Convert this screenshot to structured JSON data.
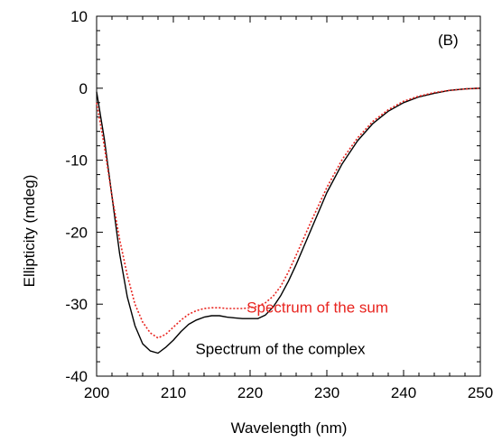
{
  "chart_data": {
    "type": "line",
    "panel_label": "(B)",
    "xlabel": "Wavelength (nm)",
    "ylabel": "Ellipticity (mdeg)",
    "xlim": [
      200,
      250
    ],
    "ylim": [
      -40,
      10
    ],
    "xticks": [
      "200",
      "210",
      "220",
      "230",
      "240",
      "250"
    ],
    "yticks": [
      "10",
      "0",
      "-10",
      "-20",
      "-30",
      "-40"
    ],
    "grid": false,
    "series": [
      {
        "name": "Spectrum of the complex",
        "color": "#000000",
        "style": "solid",
        "x": [
          200,
          201,
          202,
          203,
          204,
          205,
          206,
          207,
          208,
          209,
          210,
          211,
          212,
          213,
          214,
          215,
          216,
          217,
          218,
          219,
          220,
          221,
          222,
          223,
          224,
          225,
          226,
          227,
          228,
          229,
          230,
          232,
          234,
          236,
          238,
          240,
          242,
          244,
          246,
          248,
          250
        ],
        "y": [
          -0.5,
          -7,
          -15,
          -23,
          -29,
          -33,
          -35.5,
          -36.5,
          -36.8,
          -36,
          -35,
          -33.8,
          -32.8,
          -32.2,
          -31.8,
          -31.6,
          -31.6,
          -31.8,
          -31.9,
          -32,
          -32,
          -32,
          -31.5,
          -30.4,
          -28.8,
          -26.8,
          -24.5,
          -22,
          -19.5,
          -17,
          -14.5,
          -10.5,
          -7.3,
          -4.9,
          -3.2,
          -2,
          -1.2,
          -0.7,
          -0.3,
          -0.1,
          0
        ]
      },
      {
        "name": "Spectrum of the sum",
        "color": "#e8241f",
        "style": "dotted",
        "x": [
          200,
          201,
          202,
          203,
          204,
          205,
          206,
          207,
          208,
          209,
          210,
          211,
          212,
          213,
          214,
          215,
          216,
          217,
          218,
          219,
          220,
          221,
          222,
          223,
          224,
          225,
          226,
          227,
          228,
          229,
          230,
          232,
          234,
          236,
          238,
          240,
          242,
          244,
          246,
          248,
          250
        ],
        "y": [
          -2,
          -8,
          -15,
          -21,
          -26,
          -30,
          -32.5,
          -34,
          -34.7,
          -34.2,
          -33.2,
          -32.2,
          -31.4,
          -30.9,
          -30.6,
          -30.5,
          -30.5,
          -30.6,
          -30.6,
          -30.6,
          -30.5,
          -30.3,
          -29.8,
          -28.9,
          -27.5,
          -25.5,
          -23.2,
          -20.8,
          -18.4,
          -16.1,
          -13.8,
          -9.9,
          -6.9,
          -4.6,
          -3,
          -1.8,
          -1.1,
          -0.6,
          -0.3,
          -0.1,
          0
        ]
      }
    ],
    "annotations": [
      {
        "text": "Spectrum of the sum",
        "color": "#e8241f",
        "x": 238,
        "y": -30.4
      },
      {
        "text": "Spectrum of the complex",
        "color": "#000000",
        "x": 235,
        "y": -36.2
      }
    ]
  }
}
